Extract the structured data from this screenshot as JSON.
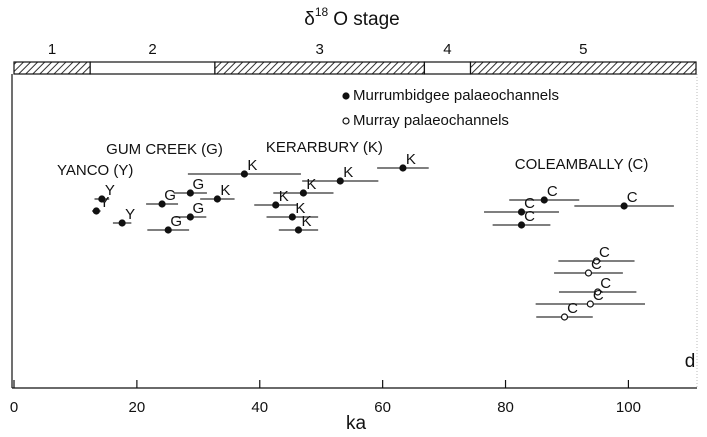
{
  "chart_data": {
    "type": "scatter",
    "title": {
      "symbol": "δ",
      "superscript": "18",
      "text": "O stage"
    },
    "x_label": "ka",
    "xlim": [
      0,
      111
    ],
    "xticks": [
      0,
      20,
      40,
      60,
      80,
      100
    ],
    "ylim": [
      0,
      300
    ],
    "panel_label": "d",
    "stages": [
      {
        "label": "1",
        "start": 0,
        "end": 12.4,
        "pattern": "hatched"
      },
      {
        "label": "2",
        "start": 12.4,
        "end": 32.7,
        "pattern": "plain"
      },
      {
        "label": "3",
        "start": 32.7,
        "end": 66.8,
        "pattern": "hatched"
      },
      {
        "label": "4",
        "start": 66.8,
        "end": 74.3,
        "pattern": "plain"
      },
      {
        "label": "5",
        "start": 74.3,
        "end": 111,
        "pattern": "hatched"
      }
    ],
    "groups": [
      {
        "label": "YANCO (Y)",
        "x": 7,
        "y": 217
      },
      {
        "label": "GUM CREEK (G)",
        "x": 15,
        "y": 238
      },
      {
        "label": "KERARBURY (K)",
        "x": 41,
        "y": 240
      },
      {
        "label": "COLEAMBALLY (C)",
        "x": 81.5,
        "y": 223
      }
    ],
    "series": [
      {
        "name": "Murrumbidgee palaeochannels",
        "marker": "filled",
        "color": "#111111",
        "points": [
          {
            "label": "Y",
            "x": 14.3,
            "y": 189,
            "err": 1.2
          },
          {
            "label": "Y",
            "x": 13.4,
            "y": 177,
            "err": 0.7
          },
          {
            "label": "Y",
            "x": 17.6,
            "y": 165,
            "err": 1.5
          },
          {
            "label": "G",
            "x": 24.1,
            "y": 184,
            "err": 2.6
          },
          {
            "label": "G",
            "x": 28.7,
            "y": 195,
            "err": 2.7
          },
          {
            "label": "G",
            "x": 28.7,
            "y": 171,
            "err": 2.6
          },
          {
            "label": "G",
            "x": 25.1,
            "y": 158,
            "err": 3.4
          },
          {
            "label": "K",
            "x": 33.1,
            "y": 189,
            "err": 2.8
          },
          {
            "label": "K",
            "x": 37.5,
            "y": 214,
            "err": 9.2
          },
          {
            "label": "K",
            "x": 53.1,
            "y": 207,
            "err": 6.2
          },
          {
            "label": "K",
            "x": 47.1,
            "y": 195,
            "err": 4.9
          },
          {
            "label": "K",
            "x": 42.6,
            "y": 183,
            "err": 3.5
          },
          {
            "label": "K",
            "x": 45.3,
            "y": 171,
            "err": 4.2
          },
          {
            "label": "K",
            "x": 46.3,
            "y": 158,
            "err": 3.2
          },
          {
            "label": "K",
            "x": 63.3,
            "y": 220,
            "err": 4.2
          },
          {
            "label": "C",
            "x": 86.3,
            "y": 188,
            "err": 5.7
          },
          {
            "label": "C",
            "x": 99.3,
            "y": 182,
            "err": 8.1
          },
          {
            "label": "C",
            "x": 82.6,
            "y": 176,
            "err": 6.1
          },
          {
            "label": "C",
            "x": 82.6,
            "y": 163,
            "err": 4.7
          }
        ]
      },
      {
        "name": "Murray palaeochannels",
        "marker": "open",
        "color": "#111111",
        "points": [
          {
            "label": "C",
            "x": 94.8,
            "y": 127,
            "err": 6.2
          },
          {
            "label": "C",
            "x": 93.5,
            "y": 115,
            "err": 5.6
          },
          {
            "label": "C",
            "x": 95,
            "y": 96,
            "err": 6.3
          },
          {
            "label": "C",
            "x": 93.8,
            "y": 84,
            "err": 8.9
          },
          {
            "label": "C",
            "x": 89.6,
            "y": 71,
            "err": 4.6
          }
        ]
      }
    ]
  }
}
